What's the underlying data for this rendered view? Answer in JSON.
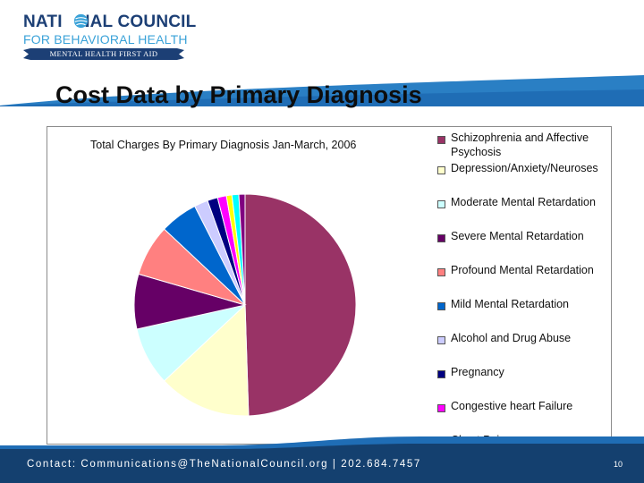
{
  "logo": {
    "line1_a": "NATI",
    "line1_b": "NAL COUNCIL",
    "line2": "FOR BEHAVIORAL HEALTH",
    "ribbon": "MENTAL HEALTH FIRST AID"
  },
  "slide": {
    "title": "Cost Data by Primary Diagnosis",
    "page_number": "10"
  },
  "footer": {
    "contact": "Contact: Communications@TheNationalCouncil.org  |  202.684.7457"
  },
  "colors": {
    "brand_blue": "#1f6db5",
    "dark_blue": "#14406f",
    "light_blue": "#3aa2d8"
  },
  "chart_data": {
    "type": "pie",
    "title": "Total Charges By Primary Diagnosis Jan-March, 2006",
    "legend_position": "right",
    "slices": [
      {
        "name": "Schizophrenia and Affective Psychosis",
        "value": 49.5,
        "color": "#993366"
      },
      {
        "name": "Depression/Anxiety/Neuroses",
        "value": 13.5,
        "color": "#ffffcc"
      },
      {
        "name": "Moderate Mental Retardation",
        "value": 8.5,
        "color": "#ccffff"
      },
      {
        "name": "Severe Mental Retardation",
        "value": 8.0,
        "color": "#660066"
      },
      {
        "name": "Profound Mental Retardation",
        "value": 7.5,
        "color": "#ff8080"
      },
      {
        "name": "Mild Mental Retardation",
        "value": 5.5,
        "color": "#0066cc"
      },
      {
        "name": "Alcohol and Drug Abuse",
        "value": 2.0,
        "color": "#ccccff"
      },
      {
        "name": "Pregnancy",
        "value": 1.5,
        "color": "#000080"
      },
      {
        "name": "Congestive heart Failure",
        "value": 1.3,
        "color": "#ff00ff"
      },
      {
        "name": "Chest Pain",
        "value": 0.8,
        "color": "#ffff00"
      },
      {
        "name": "",
        "value": 1.0,
        "color": "#00ffff"
      },
      {
        "name": "",
        "value": 0.9,
        "color": "#800080"
      }
    ]
  }
}
